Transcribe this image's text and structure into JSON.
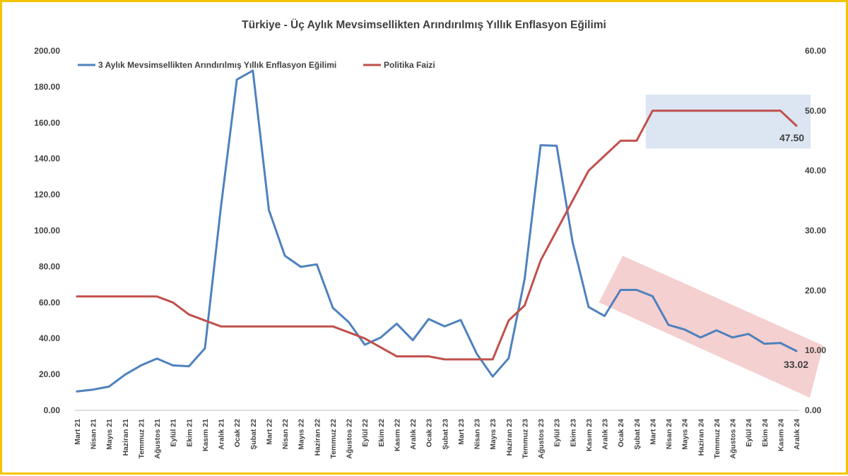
{
  "chart_data": {
    "type": "line",
    "title": "Türkiye - Üç Aylık Mevsimsellikten Arındırılmış Yıllık Enflasyon Eğilimi",
    "x": [
      "Mart 21",
      "Nisan 21",
      "Mayıs 21",
      "Haziran 21",
      "Temmuz 21",
      "Ağustos 21",
      "Eylül 21",
      "Ekim 21",
      "Kasım 21",
      "Aralık 21",
      "Ocak 22",
      "Şubat 22",
      "Mart 22",
      "Nisan 22",
      "Mayıs 22",
      "Haziran 22",
      "Temmuz 22",
      "Ağustos 22",
      "Eylül 22",
      "Ekim 22",
      "Kasım 22",
      "Aralık 22",
      "Ocak 23",
      "Şubat 23",
      "Mart 23",
      "Nisan 23",
      "Mayıs 23",
      "Haziran 23",
      "Temmuz 23",
      "Ağustos 23",
      "Eylül 23",
      "Ekim 23",
      "Kasım 23",
      "Aralık 23",
      "Ocak 24",
      "Şubat 24",
      "Mart 24",
      "Nisan 24",
      "Mayıs 24",
      "Haziran 24",
      "Temmuz 24",
      "Ağustos 24",
      "Eylül 24",
      "Ekim 24",
      "Kasım 24",
      "Aralık 24"
    ],
    "y_left_ticks": [
      "0.00",
      "20.00",
      "40.00",
      "60.00",
      "80.00",
      "100.00",
      "120.00",
      "140.00",
      "160.00",
      "180.00",
      "200.00"
    ],
    "y_right_ticks": [
      "0.00",
      "10.00",
      "20.00",
      "30.00",
      "40.00",
      "50.00",
      "60.00"
    ],
    "ylim_left": [
      0,
      200
    ],
    "ylim_right": [
      0,
      60
    ],
    "grid": false,
    "legend_position": "top-left",
    "series": [
      {
        "name": "3 Aylık Mevsimsellikten Arındırılmış Yıllık Enflasyon Eğilimi",
        "axis": "left",
        "color": "#4f81bd",
        "values": [
          10.5,
          11.5,
          13.2,
          19.8,
          25.0,
          28.8,
          25.0,
          24.5,
          34.5,
          113.0,
          184.0,
          189.0,
          111.5,
          86.0,
          79.8,
          81.2,
          57.0,
          49.0,
          36.5,
          40.5,
          48.2,
          39.0,
          50.8,
          46.7,
          50.3,
          31.5,
          18.8,
          29.0,
          73.0,
          147.5,
          147.2,
          93.5,
          57.5,
          52.5,
          67.0,
          67.0,
          63.5,
          47.5,
          45.0,
          40.5,
          44.5,
          40.5,
          42.5,
          37.0,
          37.5,
          33.02
        ]
      },
      {
        "name": "Politika Faizi",
        "axis": "right",
        "color": "#c0504d",
        "values": [
          19,
          19,
          19,
          19,
          19,
          19,
          18,
          16,
          15,
          14,
          14,
          14,
          14,
          14,
          14,
          14,
          14,
          13,
          12,
          10.5,
          9,
          9,
          9,
          8.5,
          8.5,
          8.5,
          8.5,
          15,
          17.5,
          25,
          30,
          35,
          40,
          42.5,
          45,
          45,
          50,
          50,
          50,
          50,
          50,
          50,
          50,
          50,
          50,
          47.5
        ]
      }
    ],
    "annotations": {
      "last_policy_rate": "47.50",
      "last_inflation": "33.02"
    },
    "highlight_colors": {
      "blue_box": "#dce6f2",
      "red_band": "#f2c4c4"
    }
  }
}
